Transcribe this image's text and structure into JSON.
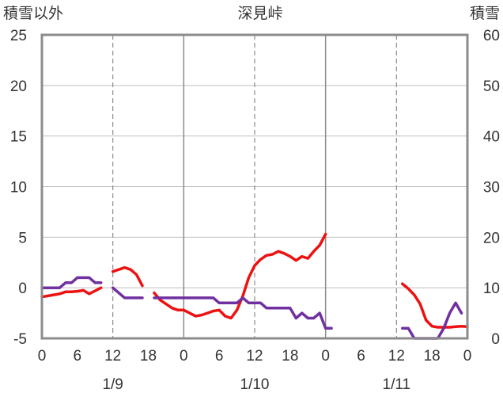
{
  "chart_data": {
    "type": "line",
    "title": "深見峠",
    "left_axis_label": "積雪以外",
    "right_axis_label": "積雪",
    "left_axis": {
      "min": -5,
      "max": 25,
      "ticks": [
        -5,
        0,
        5,
        10,
        15,
        20,
        25
      ]
    },
    "right_axis": {
      "min": 0,
      "max": 60,
      "ticks": [
        0,
        10,
        20,
        30,
        40,
        50,
        60
      ]
    },
    "x_axis": {
      "unit": "hours",
      "min": 0,
      "max": 72,
      "tick_positions": [
        0,
        6,
        12,
        18,
        24,
        30,
        36,
        42,
        48,
        54,
        60,
        66,
        72
      ],
      "tick_labels": [
        "0",
        "6",
        "12",
        "18",
        "0",
        "6",
        "12",
        "18",
        "0",
        "6",
        "12",
        "18",
        "0"
      ],
      "date_labels": [
        {
          "x": 12,
          "label": "1/9"
        },
        {
          "x": 36,
          "label": "1/10"
        },
        {
          "x": 60,
          "label": "1/11"
        }
      ]
    },
    "grid": {
      "vertical_dashed_every": 12,
      "vertical_solid_every": 24,
      "horizontal": true
    },
    "series": [
      {
        "color": "#ee1111",
        "axis": "left",
        "points": [
          [
            0,
            -0.9
          ],
          [
            1,
            -0.8
          ],
          [
            2,
            -0.7
          ],
          [
            3,
            -0.6
          ],
          [
            4,
            -0.4
          ],
          [
            5,
            -0.4
          ],
          [
            6,
            -0.35
          ],
          [
            7,
            -0.25
          ],
          [
            8,
            -0.6
          ],
          [
            9,
            -0.3
          ],
          [
            10,
            0.0
          ],
          null,
          [
            12,
            1.6
          ],
          [
            13,
            1.8
          ],
          [
            14,
            2.0
          ],
          [
            15,
            1.8
          ],
          [
            16,
            1.3
          ],
          [
            17,
            0.2
          ],
          null,
          [
            19,
            -0.5
          ],
          [
            20,
            -1.2
          ],
          [
            21,
            -1.6
          ],
          [
            22,
            -2.0
          ],
          [
            23,
            -2.2
          ],
          [
            24,
            -2.2
          ],
          [
            25,
            -2.5
          ],
          [
            26,
            -2.8
          ],
          [
            27,
            -2.7
          ],
          [
            28,
            -2.5
          ],
          [
            29,
            -2.3
          ],
          [
            30,
            -2.2
          ],
          [
            31,
            -2.8
          ],
          [
            32,
            -3.0
          ],
          [
            33,
            -2.2
          ],
          [
            34,
            -0.8
          ],
          [
            35,
            1.0
          ],
          [
            36,
            2.2
          ],
          [
            37,
            2.8
          ],
          [
            38,
            3.2
          ],
          [
            39,
            3.3
          ],
          [
            40,
            3.6
          ],
          [
            41,
            3.4
          ],
          [
            42,
            3.1
          ],
          [
            43,
            2.7
          ],
          [
            44,
            3.1
          ],
          [
            45,
            2.9
          ],
          [
            46,
            3.6
          ],
          [
            47,
            4.2
          ],
          [
            48,
            5.3
          ],
          null,
          [
            61,
            0.4
          ],
          [
            62,
            -0.1
          ],
          [
            63,
            -0.7
          ],
          [
            64,
            -1.6
          ],
          [
            65,
            -3.2
          ],
          [
            66,
            -3.8
          ],
          [
            67,
            -3.9
          ],
          [
            68,
            -3.9
          ],
          [
            69,
            -3.9
          ],
          [
            70,
            -3.85
          ],
          [
            71,
            -3.8
          ],
          [
            72,
            -3.85
          ]
        ]
      },
      {
        "color": "#7030a0",
        "axis": "left",
        "points": [
          [
            0,
            0
          ],
          [
            3,
            0
          ],
          [
            4,
            0.5
          ],
          [
            5,
            0.5
          ],
          [
            6,
            1.0
          ],
          [
            8,
            1.0
          ],
          [
            9,
            0.5
          ],
          [
            10,
            0.5
          ],
          null,
          [
            12,
            0
          ],
          [
            14,
            -1.0
          ],
          [
            17,
            -1.0
          ],
          null,
          [
            19,
            -1.0
          ],
          [
            29,
            -1.0
          ],
          [
            30,
            -1.5
          ],
          [
            33,
            -1.5
          ],
          [
            34,
            -1.0
          ],
          [
            35,
            -1.5
          ],
          [
            37,
            -1.5
          ],
          [
            38,
            -2.0
          ],
          [
            42,
            -2.0
          ],
          [
            43,
            -3.0
          ],
          [
            44,
            -2.5
          ],
          [
            45,
            -3.0
          ],
          [
            46,
            -3.0
          ],
          [
            47,
            -2.5
          ],
          [
            48,
            -4.0
          ],
          [
            49,
            -4.0
          ],
          null,
          [
            61,
            -4.0
          ],
          [
            62,
            -4.0
          ],
          [
            63,
            -5.0
          ],
          [
            67,
            -5.0
          ],
          [
            68,
            -4.0
          ],
          [
            69,
            -2.5
          ],
          [
            70,
            -1.5
          ],
          [
            71,
            -2.5
          ]
        ]
      }
    ]
  }
}
